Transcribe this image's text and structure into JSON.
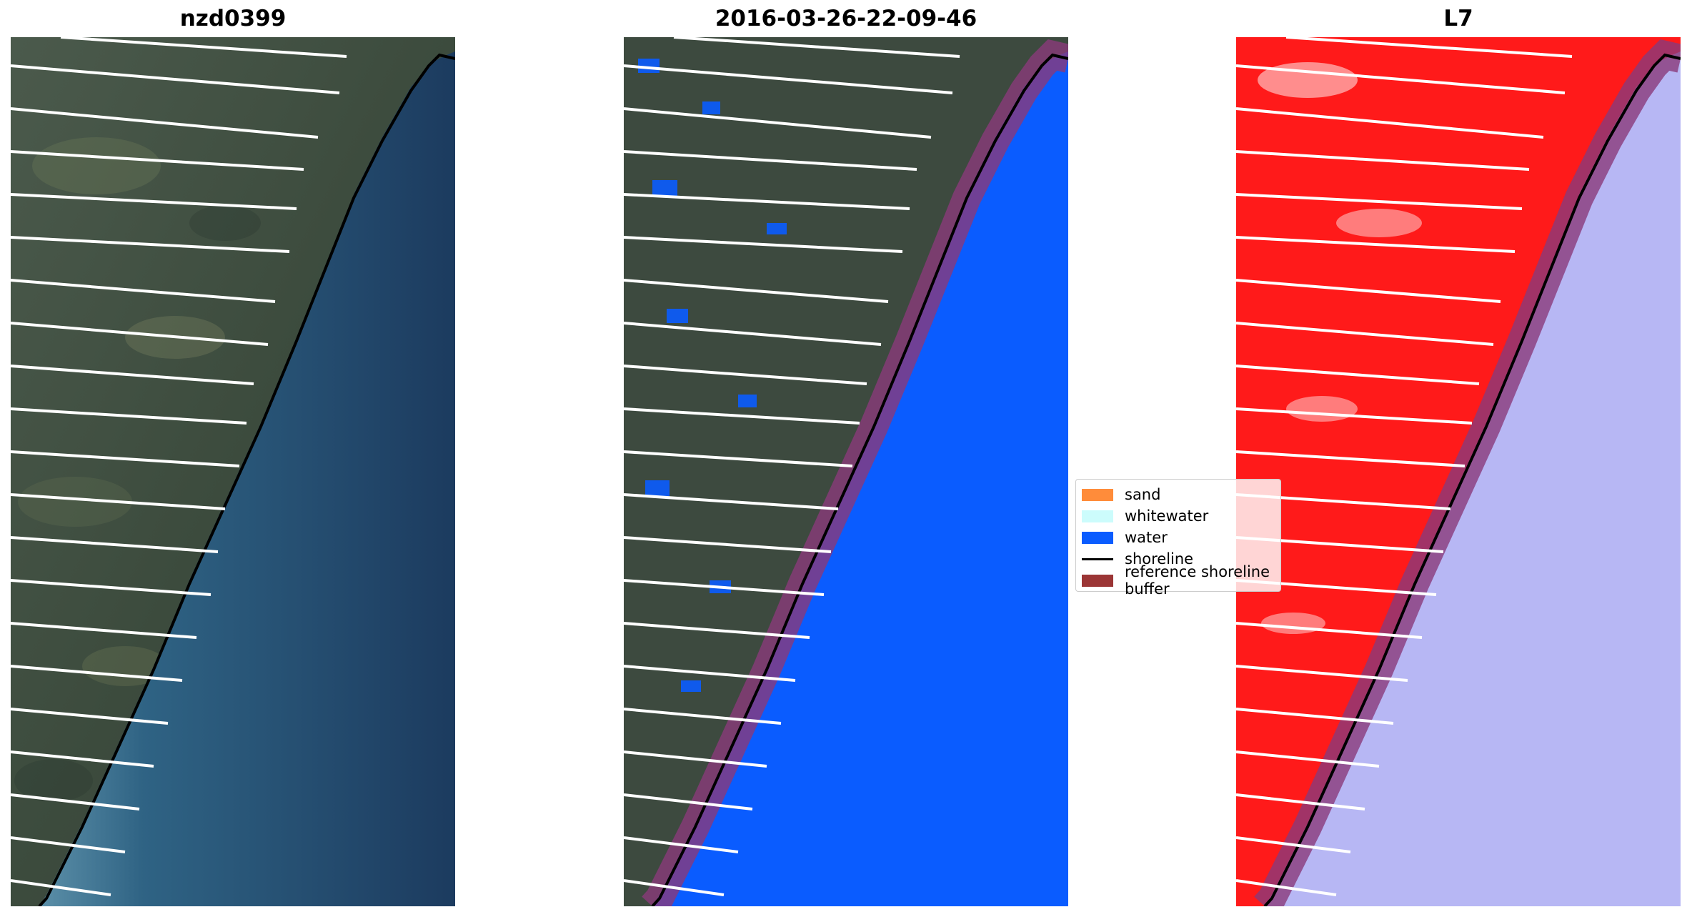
{
  "panels": [
    {
      "title": "nzd0399"
    },
    {
      "title": "2016-03-26-22-09-46"
    },
    {
      "title": "L7"
    }
  ],
  "legend": {
    "items": [
      {
        "label": "sand",
        "color": "#ff8c3a"
      },
      {
        "label": "whitewater",
        "color": "#ccfcfc"
      },
      {
        "label": "water",
        "color": "#0a5cff"
      },
      {
        "label": "shoreline",
        "color": "#000000"
      },
      {
        "label": "reference shoreline buffer",
        "color": "#9b3535"
      }
    ]
  },
  "colors": {
    "land": "#3a4a3e",
    "ocean_rgb": "#1f3f63",
    "ocean_classified": "#0a5cff",
    "land_l7": "#ff1a1a",
    "ocean_l7": "#b7b7f4",
    "buffer": "#8a3a7a"
  }
}
